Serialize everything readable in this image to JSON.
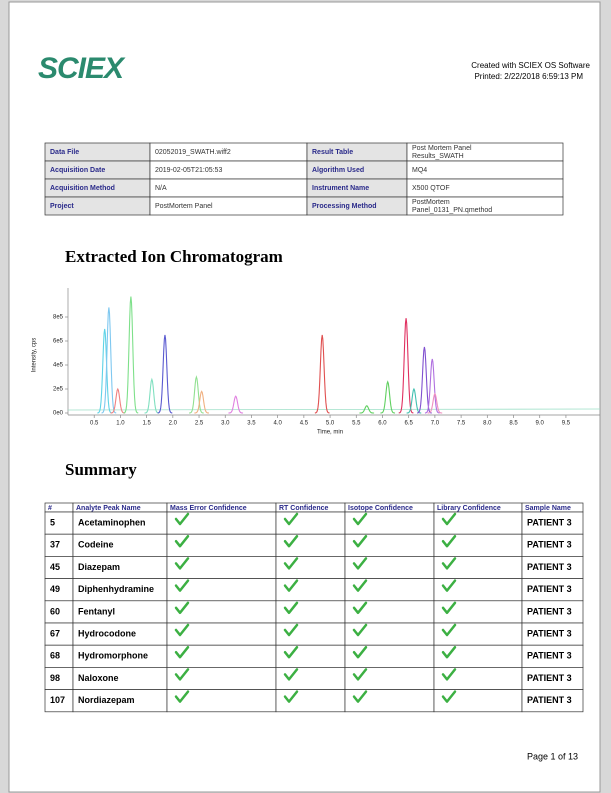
{
  "header": {
    "logo": "SCIEX",
    "created": "Created with SCIEX OS Software",
    "printed": "Printed:  2/22/2018 6:59:13 PM"
  },
  "info_table": {
    "rows": [
      [
        "Data File",
        "02052019_SWATH.wiff2",
        "Result Table",
        [
          "Post Mortem Panel",
          "Results_SWATH"
        ]
      ],
      [
        "Acquisition Date",
        "2019-02-05T21:05:53",
        "Algorithm Used",
        "MQ4"
      ],
      [
        "Acquisition Method",
        "N/A",
        "Instrument Name",
        "X500 QTOF"
      ],
      [
        "Project",
        "PostMortem Panel",
        "Processing Method",
        [
          "PostMortem",
          "Panel_0131_PN.qmethod"
        ]
      ]
    ]
  },
  "chromatogram": {
    "title": "Extracted Ion Chromatogram",
    "x_label": "Time, min",
    "y_label": "Intensity, cps",
    "xlim": [
      0,
      10.15
    ],
    "ylim": [
      0,
      1000000
    ],
    "xticks": [
      0.5,
      {
        "value": 1,
        "label": "1.0"
      },
      1.5,
      {
        "value": 2,
        "label": "2.0"
      },
      2.5,
      {
        "value": 3,
        "label": "3.0"
      },
      3.5,
      {
        "value": 4,
        "label": "4.0"
      },
      4.5,
      {
        "value": 5,
        "label": "5.0"
      },
      5.5,
      {
        "value": 6,
        "label": "6.0"
      },
      6.5,
      {
        "value": 7,
        "label": "7.0"
      },
      7.5,
      {
        "value": 8,
        "label": "8.0"
      },
      8.5,
      {
        "value": 9,
        "label": "9.0"
      },
      9.5
    ],
    "yticks": [
      {
        "value": 0,
        "label": "0e0"
      },
      {
        "value": 200000,
        "label": "2e5"
      },
      {
        "value": 400000,
        "label": "4e5"
      },
      {
        "value": 600000,
        "label": "6e5"
      },
      {
        "value": 800000,
        "label": "8e5"
      }
    ],
    "peaks": [
      {
        "time": 0.7,
        "height": 700000,
        "color": "#5fd3e6"
      },
      {
        "time": 0.78,
        "height": 880000,
        "color": "#7fc8f0"
      },
      {
        "time": 0.95,
        "height": 200000,
        "color": "#f08080"
      },
      {
        "time": 1.2,
        "height": 970000,
        "color": "#7ee08a"
      },
      {
        "time": 1.6,
        "height": 280000,
        "color": "#80e0c0"
      },
      {
        "time": 1.85,
        "height": 650000,
        "color": "#5a5ad0"
      },
      {
        "time": 2.45,
        "height": 300000,
        "color": "#90e090"
      },
      {
        "time": 2.55,
        "height": 180000,
        "color": "#f0b080"
      },
      {
        "time": 3.2,
        "height": 140000,
        "color": "#e080e0"
      },
      {
        "time": 4.85,
        "height": 650000,
        "color": "#e05050"
      },
      {
        "time": 5.7,
        "height": 60000,
        "color": "#60d060"
      },
      {
        "time": 6.1,
        "height": 260000,
        "color": "#60d060"
      },
      {
        "time": 6.45,
        "height": 790000,
        "color": "#e03060"
      },
      {
        "time": 6.6,
        "height": 200000,
        "color": "#40c0b0"
      },
      {
        "time": 6.8,
        "height": 550000,
        "color": "#8050d0"
      },
      {
        "time": 6.95,
        "height": 450000,
        "color": "#b070e0"
      },
      {
        "time": 7.0,
        "height": 160000,
        "color": "#f090c0"
      }
    ]
  },
  "summary": {
    "title": "Summary",
    "headers": [
      "#",
      "Analyte Peak Name",
      "Mass Error Confidence",
      "RT Confidence",
      "Isotope Confidence",
      "Library Confidence",
      "Sample Name"
    ],
    "rows": [
      [
        "5",
        "Acetaminophen",
        "PATIENT 3"
      ],
      [
        "37",
        "Codeine",
        "PATIENT 3"
      ],
      [
        "45",
        "Diazepam",
        "PATIENT 3"
      ],
      [
        "49",
        "Diphenhydramine",
        "PATIENT 3"
      ],
      [
        "60",
        "Fentanyl",
        "PATIENT 3"
      ],
      [
        "67",
        "Hydrocodone",
        "PATIENT 3"
      ],
      [
        "68",
        "Hydromorphone",
        "PATIENT 3"
      ],
      [
        "98",
        "Naloxone",
        "PATIENT 3"
      ],
      [
        "107",
        "Nordiazepam",
        "PATIENT 3"
      ]
    ]
  },
  "footer": {
    "page": "Page 1 of 13"
  }
}
